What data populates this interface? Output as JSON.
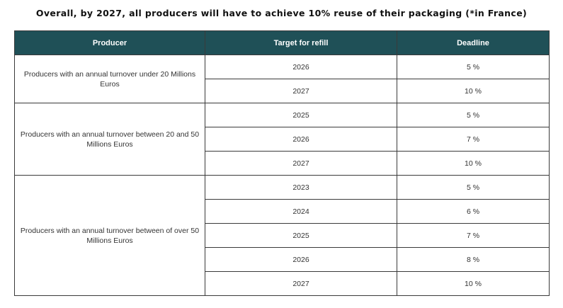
{
  "title": "Overall, by 2027, all producers will have to achieve 10% reuse of their packaging (*in France)",
  "table": {
    "headers": [
      "Producer",
      "Target for refill",
      "Deadline"
    ],
    "groups": [
      {
        "producer": "Producers with an annual turnover under 20 Millions Euros",
        "rows": [
          {
            "year": "2026",
            "target": "5 %"
          },
          {
            "year": "2027",
            "target": "10 %"
          }
        ]
      },
      {
        "producer": "Producers with an annual turnover between 20 and 50 Millions Euros",
        "rows": [
          {
            "year": "2025",
            "target": "5 %"
          },
          {
            "year": "2026",
            "target": "7 %"
          },
          {
            "year": "2027",
            "target": "10 %"
          }
        ]
      },
      {
        "producer": "Producers with an annual turnover between of over 50 Millions Euros",
        "rows": [
          {
            "year": "2023",
            "target": "5 %"
          },
          {
            "year": "2024",
            "target": "6 %"
          },
          {
            "year": "2025",
            "target": "7 %"
          },
          {
            "year": "2026",
            "target": "8 %"
          },
          {
            "year": "2027",
            "target": "10 %"
          }
        ]
      }
    ]
  }
}
